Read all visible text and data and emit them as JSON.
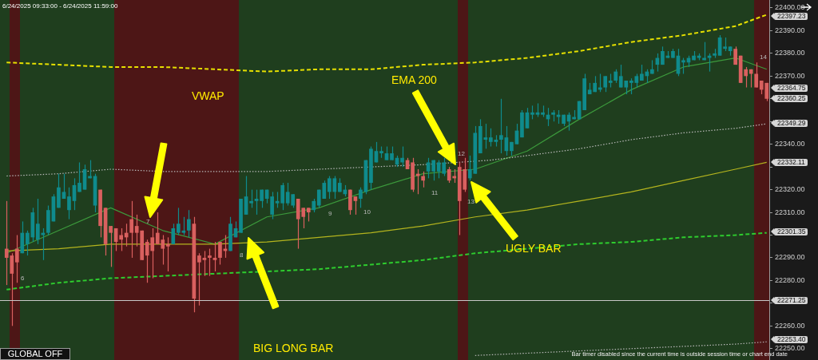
{
  "chart_data": {
    "type": "candlestick",
    "categories": [
      null,
      null,
      null,
      null,
      null,
      null,
      null,
      null,
      null,
      null,
      null,
      null,
      null,
      null,
      null,
      null,
      null,
      null,
      null,
      null,
      null,
      null,
      null,
      null,
      null,
      null,
      null,
      null,
      null,
      null,
      null,
      null,
      null,
      null,
      null,
      null,
      null,
      null,
      null,
      null,
      null,
      null,
      null,
      null,
      null,
      null,
      null,
      null,
      null,
      null,
      null,
      null,
      null,
      null,
      null,
      null,
      null,
      null,
      null,
      null,
      null,
      null,
      null,
      null,
      null,
      null,
      null,
      null,
      null,
      null,
      null,
      null,
      null,
      null,
      null,
      null,
      null,
      null,
      null,
      null,
      null,
      null,
      null,
      null,
      null,
      null,
      null,
      null,
      null,
      null,
      null,
      null,
      null,
      null,
      null,
      null,
      null,
      null,
      null,
      null,
      null,
      null,
      null,
      null,
      null,
      null,
      null,
      null,
      null,
      null,
      null,
      null,
      null,
      null,
      null,
      null,
      null,
      null,
      null,
      null,
      null,
      null,
      null,
      null,
      null,
      null,
      null,
      null,
      null,
      null,
      null,
      null,
      null,
      null,
      null,
      null,
      null,
      null,
      null,
      null,
      null,
      null,
      null,
      null,
      null,
      null,
      null
    ],
    "ohlc": [
      [
        22294,
        22315,
        22278,
        22290
      ],
      [
        22291,
        22292,
        22260,
        22283
      ],
      [
        22294,
        22300,
        22279,
        22288
      ],
      [
        22292,
        22306,
        22292,
        22301
      ],
      [
        22296,
        22302,
        22291,
        22301
      ],
      [
        22299,
        22312,
        22297,
        22310
      ],
      [
        22298,
        22316,
        22296,
        22305
      ],
      [
        22300,
        22303,
        22289,
        22301
      ],
      [
        22301,
        22313,
        22300,
        22311
      ],
      [
        22306,
        22318,
        22306,
        22317
      ],
      [
        22312,
        22327,
        22312,
        22321
      ],
      [
        22316,
        22327,
        22316,
        22319
      ],
      [
        22311,
        22321,
        22307,
        22317
      ],
      [
        22315,
        22325,
        22311,
        22322
      ],
      [
        22319,
        22332,
        22319,
        22323
      ],
      [
        22320,
        22331,
        22320,
        22329
      ],
      [
        22325,
        22333,
        22325,
        22326
      ],
      [
        22313,
        22327,
        22310,
        22326
      ],
      [
        22320,
        22320,
        22299,
        22304
      ],
      [
        22312,
        22312,
        22291,
        22296
      ],
      [
        22304,
        22304,
        22286,
        22301
      ],
      [
        22303,
        22303,
        22293,
        22297
      ],
      [
        22300,
        22303,
        22293,
        22298
      ],
      [
        22301,
        22305,
        22295,
        22299
      ],
      [
        22307,
        22315,
        22290,
        22301
      ],
      [
        22304,
        22309,
        22295,
        22301
      ],
      [
        22302,
        22302,
        22289,
        22289
      ],
      [
        22297,
        22298,
        22279,
        22291
      ],
      [
        22299,
        22303,
        22281,
        22293
      ],
      [
        22301,
        22310,
        22296,
        22296
      ],
      [
        22298,
        22300,
        22287,
        22294
      ],
      [
        22296,
        22299,
        22284,
        22295
      ],
      [
        22296,
        22305,
        22296,
        22303
      ],
      [
        22301,
        22312,
        22300,
        22305
      ],
      [
        22301,
        22308,
        22300,
        22302
      ],
      [
        22302,
        22311,
        22299,
        22307
      ],
      [
        22305,
        22308,
        22266,
        22272
      ],
      [
        22291,
        22292,
        22269,
        22288
      ],
      [
        22290,
        22293,
        22282,
        22289
      ],
      [
        22291,
        22294,
        22282,
        22290
      ],
      [
        22290,
        22297,
        22284,
        22289
      ],
      [
        22297,
        22297,
        22287,
        22290
      ],
      [
        22294,
        22300,
        22290,
        22293
      ],
      [
        22293,
        22308,
        22293,
        22305
      ],
      [
        22299,
        22306,
        22299,
        22303
      ],
      [
        22301,
        22316,
        22301,
        22316
      ],
      [
        22309,
        22326,
        22309,
        22317
      ],
      [
        22314,
        22320,
        22312,
        22315
      ],
      [
        22315,
        22320,
        22309,
        22316
      ],
      [
        22315,
        22320,
        22312,
        22320
      ],
      [
        22316,
        22320,
        22314,
        22320
      ],
      [
        22309,
        22319,
        22307,
        22317
      ],
      [
        22314,
        22319,
        22312,
        22315
      ],
      [
        22314,
        22323,
        22311,
        22322
      ],
      [
        22314,
        22323,
        22313,
        22319
      ],
      [
        22313,
        22318,
        22312,
        22318
      ],
      [
        22316,
        22316,
        22294,
        22307
      ],
      [
        22312,
        22312,
        22303,
        22308
      ],
      [
        22312,
        22312,
        22306,
        22310
      ],
      [
        22311,
        22316,
        22310,
        22315
      ],
      [
        22313,
        22320,
        22312,
        22320
      ],
      [
        22316,
        22324,
        22316,
        22323
      ],
      [
        22319,
        22326,
        22316,
        22325
      ],
      [
        22319,
        22326,
        22316,
        22325
      ],
      [
        22319,
        22325,
        22319,
        22323
      ],
      [
        22318,
        22322,
        22317,
        22320
      ],
      [
        22320,
        22320,
        22309,
        22311
      ],
      [
        22317,
        22317,
        22309,
        22315
      ],
      [
        22316,
        22321,
        22312,
        22320
      ],
      [
        22319,
        22333,
        22318,
        22333
      ],
      [
        22323,
        22339,
        22320,
        22338
      ],
      [
        22332,
        22341,
        22332,
        22337
      ],
      [
        22336,
        22339,
        22334,
        22337
      ],
      [
        22333,
        22339,
        22333,
        22336
      ],
      [
        22333,
        22339,
        22333,
        22336
      ],
      [
        22331,
        22335,
        22330,
        22334
      ],
      [
        22332,
        22339,
        22330,
        22334
      ],
      [
        22333,
        22334,
        22329,
        22329
      ],
      [
        22332,
        22334,
        22319,
        22320
      ],
      [
        22327,
        22329,
        22318,
        22326
      ],
      [
        22326,
        22328,
        22321,
        22324
      ],
      [
        22328,
        22334,
        22325,
        22332
      ],
      [
        22328,
        22333,
        22324,
        22333
      ],
      [
        22328,
        22333,
        22325,
        22332
      ],
      [
        22327,
        22334,
        22326,
        22332
      ],
      [
        22329,
        22330,
        22323,
        22324
      ],
      [
        22326,
        22329,
        22323,
        22325
      ],
      [
        22330,
        22332,
        22300,
        22315
      ],
      [
        22329,
        22334,
        22319,
        22320
      ],
      [
        22325,
        22335,
        22324,
        22329
      ],
      [
        22327,
        22348,
        22327,
        22345
      ],
      [
        22336,
        22351,
        22336,
        22348
      ],
      [
        22342,
        22349,
        22338,
        22343
      ],
      [
        22341,
        22347,
        22339,
        22343
      ],
      [
        22341,
        22344,
        22339,
        22342
      ],
      [
        22342,
        22360,
        22336,
        22344
      ],
      [
        22337,
        22348,
        22335,
        22343
      ],
      [
        22337,
        22341,
        22335,
        22341
      ],
      [
        22340,
        22349,
        22340,
        22346
      ],
      [
        22343,
        22355,
        22343,
        22354
      ],
      [
        22347,
        22356,
        22347,
        22354
      ],
      [
        22353,
        22357,
        22351,
        22354
      ],
      [
        22353,
        22358,
        22352,
        22354
      ],
      [
        22353,
        22357,
        22352,
        22354
      ],
      [
        22351,
        22356,
        22348,
        22353
      ],
      [
        22353,
        22355,
        22350,
        22354
      ],
      [
        22352,
        22355,
        22349,
        22353
      ],
      [
        22349,
        22353,
        22348,
        22353
      ],
      [
        22350,
        22354,
        22346,
        22353
      ],
      [
        22351,
        22355,
        22351,
        22352
      ],
      [
        22351,
        22359,
        22351,
        22359
      ],
      [
        22355,
        22371,
        22355,
        22369
      ],
      [
        22362,
        22367,
        22362,
        22364
      ],
      [
        22363,
        22370,
        22363,
        22367
      ],
      [
        22364,
        22371,
        22363,
        22365
      ],
      [
        22365,
        22370,
        22363,
        22370
      ],
      [
        22367,
        22371,
        22365,
        22368
      ],
      [
        22368,
        22373,
        22367,
        22372
      ],
      [
        22365,
        22375,
        22365,
        22370
      ],
      [
        22365,
        22368,
        22362,
        22368
      ],
      [
        22367,
        22369,
        22362,
        22368
      ],
      [
        22367,
        22371,
        22365,
        22370
      ],
      [
        22368,
        22375,
        22368,
        22371
      ],
      [
        22370,
        22373,
        22367,
        22372
      ],
      [
        22371,
        22377,
        22371,
        22373
      ],
      [
        22375,
        22380,
        22372,
        22378
      ],
      [
        22375,
        22383,
        22375,
        22381
      ],
      [
        22378,
        22381,
        22378,
        22379
      ],
      [
        22378,
        22382,
        22378,
        22381
      ],
      [
        22371,
        22382,
        22370,
        22379
      ],
      [
        22376,
        22378,
        22371,
        22377
      ],
      [
        22376,
        22379,
        22374,
        22378
      ],
      [
        22377,
        22381,
        22377,
        22379
      ],
      [
        22378,
        22380,
        22377,
        22379
      ],
      [
        22377,
        22385,
        22377,
        22378
      ],
      [
        22378,
        22380,
        22372,
        22379
      ],
      [
        22379,
        22382,
        22378,
        22380
      ],
      [
        22379,
        22388,
        22379,
        22387
      ],
      [
        22382,
        22387,
        22381,
        22383
      ],
      [
        22381,
        22383,
        22379,
        22383
      ],
      [
        22382,
        22383,
        22375,
        22375
      ],
      [
        22379,
        22379,
        22367,
        22367
      ],
      [
        22373,
        22374,
        22365,
        22370
      ],
      [
        22373,
        22373,
        22365,
        22371
      ],
      [
        22371,
        22376,
        22365,
        22365
      ],
      [
        22368,
        22368,
        22362,
        22364
      ],
      [
        22367,
        22367,
        22359,
        22360
      ]
    ],
    "colors": [
      "#d9605f",
      "#d9605f",
      "#d9605f",
      "#0f8b8d",
      "#0f8b8d",
      "#0f8b8d",
      "#0f8b8d",
      "#0f8b8d",
      "#0f8b8d",
      "#0f8b8d",
      "#0f8b8d",
      "#0f8b8d",
      "#0f8b8d",
      "#0f8b8d",
      "#0f8b8d",
      "#0f8b8d",
      "#0f8b8d",
      "#0f8b8d",
      "#d9605f",
      "#d9605f",
      "#d9605f",
      "#d9605f",
      "#d9605f",
      "#d9605f",
      "#d9605f",
      "#d9605f",
      "#d9605f",
      "#d9605f",
      "#d9605f",
      "#d9605f",
      "#d9605f",
      "#d9605f",
      "#0f8b8d",
      "#0f8b8d",
      "#0f8b8d",
      "#0f8b8d",
      "#d9605f",
      "#d9605f",
      "#d9605f",
      "#d9605f",
      "#d9605f",
      "#d9605f",
      "#d9605f",
      "#0f8b8d",
      "#0f8b8d",
      "#0f8b8d",
      "#0f8b8d",
      "#0f8b8d",
      "#0f8b8d",
      "#0f8b8d",
      "#0f8b8d",
      "#0f8b8d",
      "#0f8b8d",
      "#0f8b8d",
      "#0f8b8d",
      "#0f8b8d",
      "#d9605f",
      "#d9605f",
      "#d9605f",
      "#0f8b8d",
      "#0f8b8d",
      "#0f8b8d",
      "#0f8b8d",
      "#0f8b8d",
      "#0f8b8d",
      "#0f8b8d",
      "#d9605f",
      "#d9605f",
      "#0f8b8d",
      "#0f8b8d",
      "#0f8b8d",
      "#0f8b8d",
      "#0f8b8d",
      "#0f8b8d",
      "#0f8b8d",
      "#0f8b8d",
      "#0f8b8d",
      "#d9605f",
      "#d9605f",
      "#d9605f",
      "#d9605f",
      "#0f8b8d",
      "#0f8b8d",
      "#0f8b8d",
      "#0f8b8d",
      "#d9605f",
      "#d9605f",
      "#d9605f",
      "#d9605f",
      "#0f8b8d",
      "#0f8b8d",
      "#0f8b8d",
      "#0f8b8d",
      "#0f8b8d",
      "#0f8b8d",
      "#0f8b8d",
      "#0f8b8d",
      "#0f8b8d",
      "#0f8b8d",
      "#0f8b8d",
      "#0f8b8d",
      "#0f8b8d",
      "#0f8b8d",
      "#0f8b8d",
      "#0f8b8d",
      "#0f8b8d",
      "#0f8b8d",
      "#0f8b8d",
      "#0f8b8d",
      "#0f8b8d",
      "#0f8b8d",
      "#0f8b8d",
      "#0f8b8d",
      "#0f8b8d",
      "#0f8b8d",
      "#0f8b8d",
      "#0f8b8d",
      "#0f8b8d",
      "#0f8b8d",
      "#0f8b8d",
      "#0f8b8d",
      "#0f8b8d",
      "#0f8b8d",
      "#0f8b8d",
      "#0f8b8d",
      "#0f8b8d",
      "#0f8b8d",
      "#0f8b8d",
      "#0f8b8d",
      "#0f8b8d",
      "#0f8b8d",
      "#0f8b8d",
      "#0f8b8d",
      "#0f8b8d",
      "#0f8b8d",
      "#0f8b8d",
      "#0f8b8d",
      "#0f8b8d",
      "#0f8b8d",
      "#0f8b8d",
      "#d9605f",
      "#d9605f",
      "#d9605f",
      "#d9605f",
      "#d9605f",
      "#d9605f",
      "#d9605f"
    ],
    "series": [
      {
        "type": "line",
        "color": "#e6e000",
        "line_style": "dashed",
        "values": [
          22376,
          null,
          null,
          null,
          null,
          null,
          null,
          null,
          null,
          null,
          22375,
          null,
          null,
          null,
          null,
          null,
          null,
          null,
          null,
          null,
          22374,
          null,
          null,
          null,
          null,
          null,
          null,
          null,
          null,
          null,
          22374,
          null,
          null,
          null,
          null,
          null,
          null,
          null,
          null,
          null,
          22373,
          null,
          null,
          null,
          null,
          null,
          null,
          null,
          null,
          null,
          22372,
          null,
          null,
          null,
          null,
          null,
          null,
          null,
          null,
          null,
          22373,
          null,
          null,
          null,
          null,
          null,
          null,
          null,
          null,
          null,
          22373,
          null,
          null,
          null,
          null,
          null,
          null,
          null,
          null,
          null,
          22375,
          null,
          null,
          null,
          null,
          null,
          null,
          null,
          null,
          null,
          22376,
          null,
          null,
          null,
          null,
          null,
          null,
          null,
          null,
          null,
          22378,
          null,
          null,
          null,
          null,
          null,
          null,
          null,
          null,
          null,
          22381,
          null,
          null,
          null,
          null,
          null,
          null,
          null,
          null,
          null,
          22385,
          null,
          null,
          null,
          null,
          null,
          null,
          null,
          null,
          null,
          22388,
          null,
          null,
          null,
          null,
          null,
          null,
          null,
          null,
          null,
          22392,
          null,
          null,
          null,
          null,
          null,
          22397
        ]
      },
      {
        "type": "line",
        "color": "#2ecc2e",
        "line_style": "dashed",
        "values": [
          22276,
          null,
          null,
          null,
          null,
          null,
          null,
          null,
          null,
          null,
          22279,
          null,
          null,
          null,
          null,
          null,
          null,
          null,
          null,
          null,
          22281,
          null,
          null,
          null,
          null,
          null,
          null,
          null,
          null,
          null,
          22282,
          null,
          null,
          null,
          null,
          null,
          null,
          null,
          null,
          null,
          22283,
          null,
          null,
          null,
          null,
          null,
          null,
          null,
          null,
          null,
          22284,
          null,
          null,
          null,
          null,
          null,
          null,
          null,
          null,
          null,
          22285,
          null,
          null,
          null,
          null,
          null,
          null,
          null,
          null,
          null,
          22287,
          null,
          null,
          null,
          null,
          null,
          null,
          null,
          null,
          null,
          22289,
          null,
          null,
          null,
          null,
          null,
          null,
          null,
          null,
          null,
          22292,
          null,
          null,
          null,
          null,
          null,
          null,
          null,
          null,
          null,
          22294,
          null,
          null,
          null,
          null,
          null,
          null,
          null,
          null,
          null,
          22296,
          null,
          null,
          null,
          null,
          null,
          null,
          null,
          null,
          null,
          22297,
          null,
          null,
          null,
          null,
          null,
          null,
          null,
          null,
          null,
          22299,
          null,
          null,
          null,
          null,
          null,
          null,
          null,
          null,
          null,
          22300,
          null,
          null,
          null,
          null,
          null,
          22301
        ]
      },
      {
        "type": "line",
        "color": "#b8b8b8",
        "line_style": "dotted",
        "values": [
          22326,
          null,
          null,
          null,
          null,
          null,
          null,
          null,
          null,
          null,
          22327,
          null,
          null,
          null,
          null,
          null,
          null,
          null,
          null,
          null,
          22329,
          null,
          null,
          null,
          null,
          null,
          null,
          null,
          null,
          null,
          22328,
          null,
          null,
          null,
          null,
          null,
          null,
          null,
          null,
          null,
          22328,
          null,
          null,
          null,
          null,
          null,
          null,
          null,
          null,
          null,
          22328,
          null,
          null,
          null,
          null,
          null,
          null,
          null,
          null,
          null,
          22329,
          null,
          null,
          null,
          null,
          null,
          null,
          null,
          null,
          null,
          22330,
          null,
          null,
          null,
          null,
          null,
          null,
          null,
          null,
          null,
          22331,
          null,
          null,
          null,
          null,
          null,
          null,
          null,
          null,
          null,
          null,
          null,
          null,
          22333,
          null,
          null,
          null,
          null,
          null,
          null,
          22335,
          null,
          null,
          null,
          null,
          null,
          null,
          null,
          null,
          null,
          22338,
          null,
          null,
          null,
          null,
          null,
          null,
          null,
          null,
          null,
          22342,
          null,
          null,
          null,
          null,
          null,
          null,
          null,
          null,
          null,
          22345,
          null,
          null,
          null,
          null,
          null,
          null,
          null,
          null,
          null,
          22347,
          null,
          null,
          null,
          null,
          null,
          22349
        ]
      },
      {
        "type": "line",
        "color": "#b4b41e",
        "line_style": "solid",
        "values": [
          22293,
          null,
          null,
          null,
          null,
          null,
          null,
          null,
          null,
          null,
          22294,
          null,
          null,
          null,
          null,
          null,
          null,
          null,
          null,
          null,
          22296,
          null,
          null,
          null,
          null,
          null,
          null,
          null,
          null,
          null,
          22296,
          null,
          null,
          null,
          null,
          null,
          null,
          null,
          null,
          null,
          22296,
          null,
          null,
          null,
          null,
          null,
          null,
          null,
          null,
          null,
          22297,
          null,
          null,
          null,
          null,
          null,
          null,
          null,
          null,
          null,
          22299,
          null,
          null,
          null,
          null,
          null,
          null,
          null,
          null,
          null,
          22301,
          null,
          null,
          null,
          null,
          null,
          null,
          null,
          null,
          null,
          22304,
          null,
          null,
          null,
          null,
          null,
          null,
          null,
          null,
          null,
          22308,
          null,
          null,
          null,
          null,
          null,
          null,
          null,
          null,
          null,
          22311,
          null,
          null,
          null,
          null,
          null,
          null,
          null,
          null,
          null,
          22315,
          null,
          null,
          null,
          null,
          null,
          null,
          null,
          null,
          null,
          22319,
          null,
          null,
          null,
          null,
          null,
          null,
          null,
          null,
          null,
          22324,
          null,
          null,
          null,
          null,
          null,
          null,
          null,
          null,
          null,
          22329,
          null,
          null,
          null,
          null,
          null,
          22332
        ]
      },
      {
        "type": "line",
        "color": "#3c9a3c",
        "line_style": "solid",
        "values": [
          22292,
          null,
          null,
          null,
          null,
          null,
          null,
          null,
          null,
          null,
          22302,
          null,
          null,
          null,
          null,
          null,
          null,
          null,
          null,
          null,
          22312,
          null,
          null,
          null,
          null,
          null,
          null,
          null,
          null,
          null,
          22302,
          null,
          null,
          null,
          null,
          null,
          null,
          null,
          null,
          null,
          22296,
          null,
          null,
          null,
          null,
          null,
          null,
          null,
          null,
          null,
          22308,
          null,
          null,
          null,
          null,
          null,
          null,
          null,
          null,
          null,
          22312,
          null,
          null,
          null,
          null,
          null,
          null,
          null,
          null,
          null,
          22320,
          null,
          null,
          null,
          null,
          null,
          null,
          null,
          null,
          null,
          22327,
          null,
          null,
          null,
          null,
          null,
          null,
          null,
          null,
          null,
          22329,
          null,
          null,
          null,
          null,
          null,
          null,
          null,
          null,
          null,
          22337,
          null,
          null,
          null,
          null,
          null,
          null,
          null,
          null,
          null,
          22351,
          null,
          null,
          null,
          null,
          null,
          null,
          null,
          null,
          null,
          22364,
          null,
          null,
          null,
          null,
          null,
          null,
          null,
          null,
          null,
          22374,
          null,
          null,
          null,
          null,
          null,
          null,
          null,
          null,
          null,
          22378,
          null,
          null,
          null,
          null,
          null,
          22373
        ]
      },
      {
        "type": "line",
        "color": "#b8b8b8",
        "line_style": "dotted",
        "values": [
          null,
          null,
          null,
          null,
          null,
          null,
          null,
          null,
          null,
          null,
          null,
          null,
          null,
          null,
          null,
          null,
          null,
          null,
          null,
          null,
          null,
          null,
          null,
          null,
          null,
          null,
          null,
          null,
          null,
          null,
          null,
          null,
          null,
          null,
          null,
          null,
          null,
          null,
          null,
          null,
          null,
          null,
          null,
          null,
          null,
          null,
          null,
          null,
          null,
          null,
          null,
          null,
          null,
          null,
          null,
          null,
          null,
          null,
          null,
          null,
          null,
          null,
          null,
          null,
          null,
          null,
          null,
          null,
          null,
          null,
          null,
          null,
          null,
          null,
          null,
          null,
          null,
          null,
          null,
          null,
          null,
          null,
          null,
          null,
          null,
          null,
          null,
          null,
          null,
          null,
          22247,
          null,
          null,
          null,
          null,
          null,
          null,
          null,
          null,
          null,
          22248,
          null,
          null,
          null,
          null,
          null,
          null,
          null,
          null,
          null,
          22249,
          null,
          null,
          null,
          null,
          null,
          null,
          null,
          null,
          null,
          22250,
          null,
          null,
          null,
          null,
          null,
          null,
          null,
          null,
          null,
          22251,
          null,
          null,
          null,
          null,
          null,
          null,
          null,
          null,
          null,
          22252,
          null,
          null,
          null,
          null,
          null,
          22253
        ]
      }
    ],
    "ylim": [
      22245,
      22403.5
    ],
    "yticks": [
      {
        "value": 22250,
        "label": "22250.00"
      },
      {
        "value": 22260,
        "label": "22260.00"
      },
      {
        "value": 22270,
        "label": null
      },
      {
        "value": 22280,
        "label": "22280.00"
      },
      {
        "value": 22290,
        "label": "22290.00"
      },
      {
        "value": 22300,
        "label": null
      },
      {
        "value": 22310,
        "label": "22310.00"
      },
      {
        "value": 22320,
        "label": "22320.00"
      },
      {
        "value": 22330,
        "label": null
      },
      {
        "value": 22340,
        "label": "22340.00"
      },
      {
        "value": 22350,
        "label": null
      },
      {
        "value": 22360,
        "label": null
      },
      {
        "value": 22370,
        "label": "22370.00"
      },
      {
        "value": 22380,
        "label": "22380.00"
      },
      {
        "value": 22390,
        "label": "22390.00"
      },
      {
        "value": 22400,
        "label": "22400.00"
      }
    ],
    "tick_labels": "y",
    "grid": false,
    "legend": false,
    "ref_lines": [
      {
        "axis": "y",
        "value": 22271.25,
        "label": "22271.25",
        "color": "#c8c8c8"
      }
    ],
    "annotations": [
      "6/24/2025 09:33:00 - 6/24/2025 11:59:00",
      "VWAP",
      "EMA 200",
      "BIG LONG BAR",
      "UGLY BAR",
      "GLOBAL OFF",
      "Bar timer disabled since the current time is outside session time or chart end date",
      "6",
      "7",
      "8",
      "9",
      "10",
      "11",
      "12",
      "13",
      "14",
      "22397.23",
      "22364.75",
      "22360.25",
      "22349.29",
      "22332.11",
      "22301.35",
      "22253.40"
    ]
  }
}
